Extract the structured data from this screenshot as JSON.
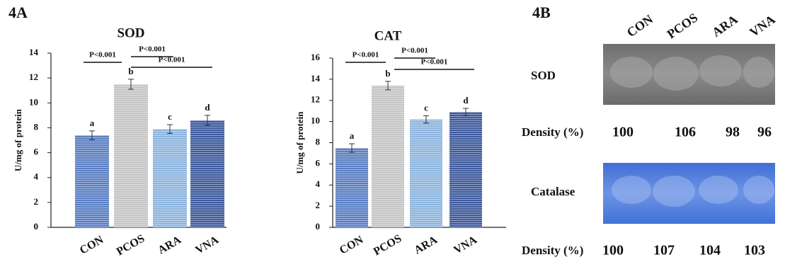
{
  "panel_a_label": "4A",
  "chart_data": [
    {
      "type": "bar",
      "title": "SOD",
      "y_label": "U/mg of protein",
      "categories": [
        "CON",
        "PCOS",
        "ARA",
        "VNA"
      ],
      "values": [
        7.4,
        11.5,
        7.9,
        8.6
      ],
      "errors": [
        0.35,
        0.4,
        0.35,
        0.4
      ],
      "significance_letters": [
        "a",
        "b",
        "c",
        "d"
      ],
      "comparisons": [
        "P<0.001",
        "P<0.001",
        "P<0.001"
      ],
      "colors": [
        "#5a7ec2",
        "#c4c4c4",
        "#8db4de",
        "#3e5a9c"
      ],
      "ylim": [
        0,
        14
      ],
      "yticks": [
        0,
        2,
        4,
        6,
        8,
        10,
        12,
        14
      ]
    },
    {
      "type": "bar",
      "title": "CAT",
      "y_label": "U/mg of protein",
      "categories": [
        "CON",
        "PCOS",
        "ARA",
        "VNA"
      ],
      "values": [
        7.5,
        13.4,
        10.2,
        10.9
      ],
      "errors": [
        0.4,
        0.4,
        0.35,
        0.35
      ],
      "significance_letters": [
        "a",
        "b",
        "c",
        "d"
      ],
      "comparisons": [
        "P<0.001",
        "P<0.001",
        "P<0.001"
      ],
      "colors": [
        "#5a7ec2",
        "#c4c4c4",
        "#8db4de",
        "#3e5a9c"
      ],
      "ylim": [
        0,
        16
      ],
      "yticks": [
        0,
        2,
        4,
        6,
        8,
        10,
        12,
        14,
        16
      ]
    }
  ],
  "panel_b": {
    "label": "4B",
    "lanes": [
      "CON",
      "PCOS",
      "ARA",
      "VNA"
    ],
    "gels": [
      {
        "label": "SOD",
        "density_label": "Density (%)",
        "densities": [
          100,
          106,
          98,
          96
        ]
      },
      {
        "label": "Catalase",
        "density_label": "Density (%)",
        "densities": [
          100,
          107,
          104,
          103
        ]
      }
    ]
  }
}
